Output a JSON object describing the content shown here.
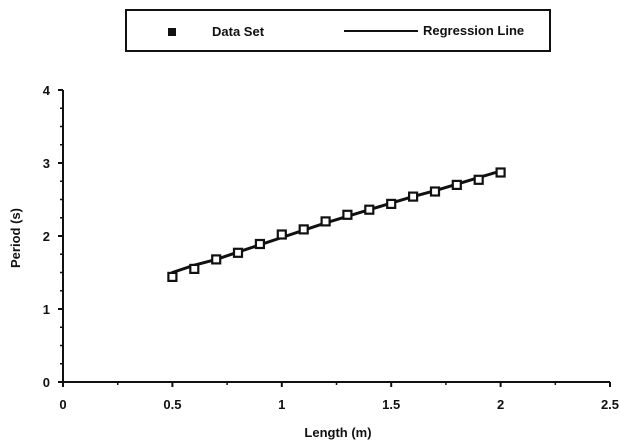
{
  "chart_data": {
    "type": "scatter",
    "xlabel": "Length (m)",
    "ylabel": "Period  (s)",
    "xlim": [
      0,
      2.5
    ],
    "ylim": [
      0,
      4
    ],
    "x_ticks": [
      "0",
      "0.5",
      "1",
      "1.5",
      "2",
      "2.5"
    ],
    "y_ticks": [
      "0",
      "1",
      "2",
      "3",
      "4"
    ],
    "grid": false,
    "legend_position": "top-center",
    "series": [
      {
        "name": "Data Set",
        "kind": "markers",
        "marker": "square",
        "x": [
          0.5,
          0.6,
          0.7,
          0.8,
          0.9,
          1.0,
          1.1,
          1.2,
          1.3,
          1.4,
          1.5,
          1.6,
          1.7,
          1.8,
          1.9,
          2.0
        ],
        "y": [
          1.44,
          1.55,
          1.68,
          1.77,
          1.89,
          2.02,
          2.09,
          2.2,
          2.29,
          2.36,
          2.44,
          2.54,
          2.61,
          2.7,
          2.77,
          2.87
        ]
      },
      {
        "name": "Regression Line",
        "kind": "line",
        "x": [
          0.5,
          0.6,
          0.7,
          0.8,
          0.9,
          1.0,
          1.1,
          1.2,
          1.3,
          1.4,
          1.5,
          1.6,
          1.7,
          1.8,
          1.9,
          2.0
        ],
        "y": [
          1.5,
          1.6,
          1.68,
          1.78,
          1.88,
          1.98,
          2.08,
          2.18,
          2.27,
          2.36,
          2.45,
          2.54,
          2.62,
          2.71,
          2.8,
          2.89
        ]
      }
    ]
  },
  "colors": {
    "ink": "#111111",
    "background": "#ffffff"
  }
}
